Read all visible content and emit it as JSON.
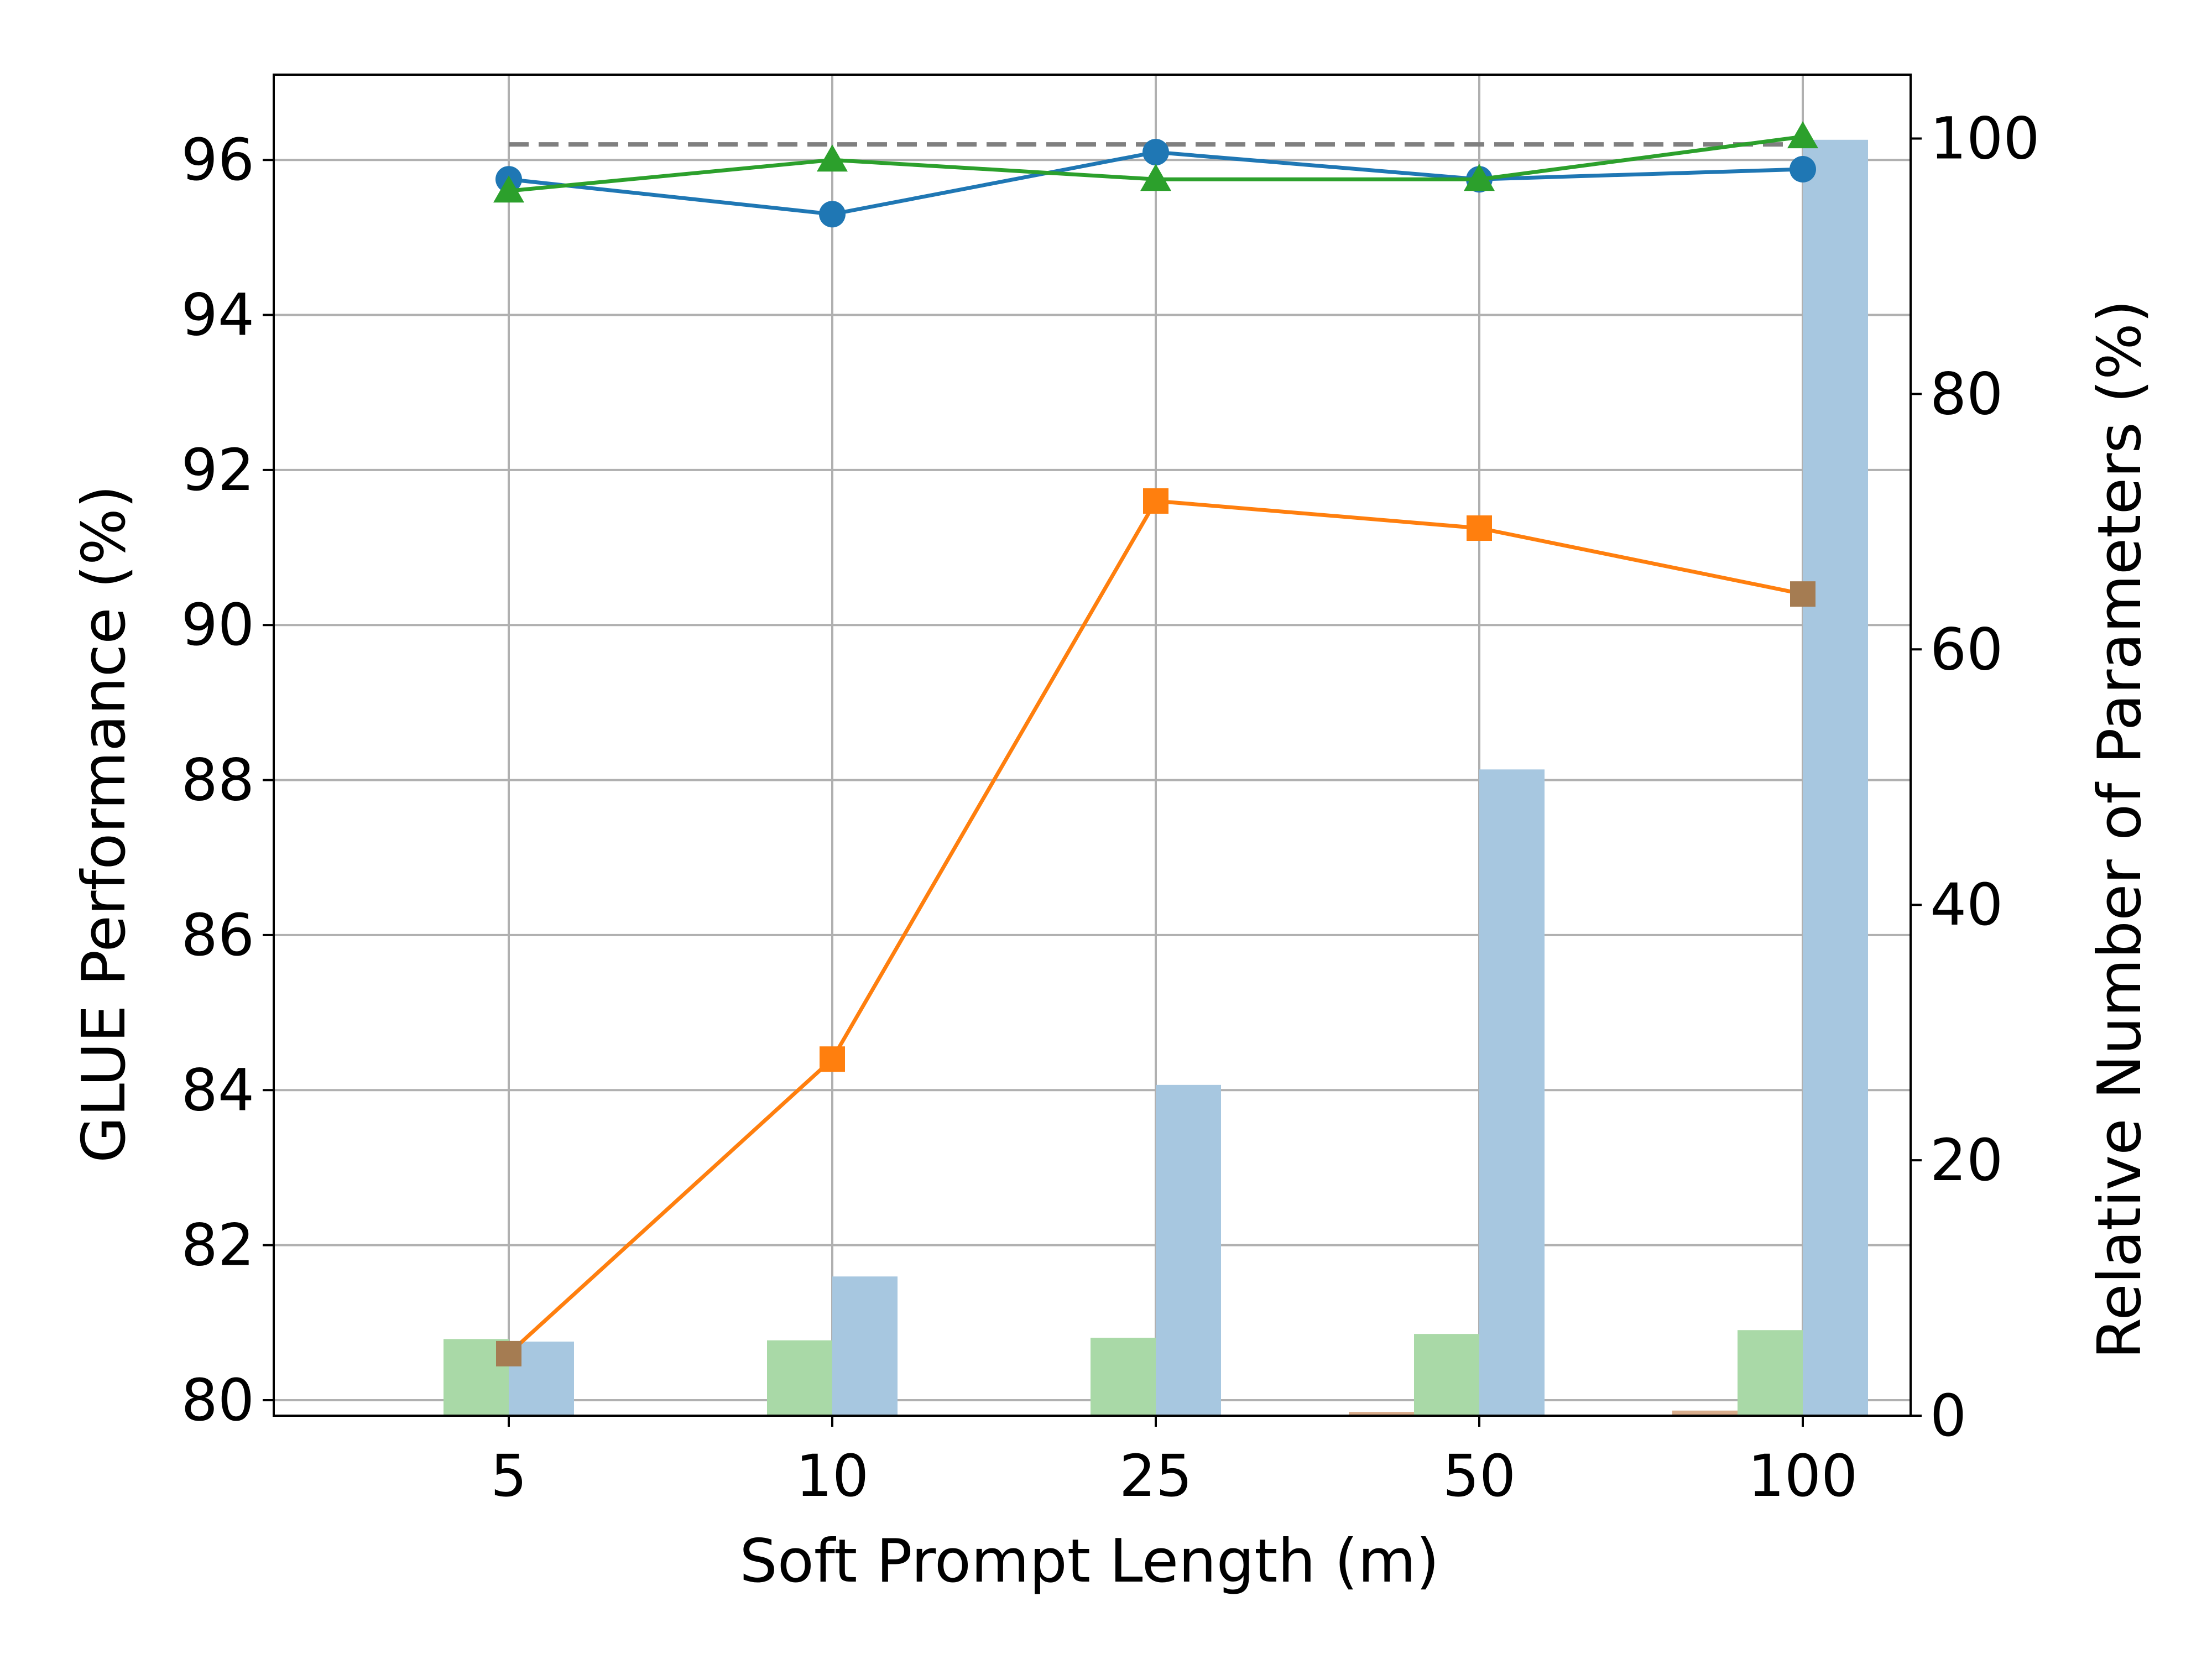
{
  "chart_data": {
    "type": "bar+line",
    "title": "",
    "categories": [
      "5",
      "10",
      "25",
      "50",
      "100"
    ],
    "xlabel": "Soft Prompt Length (m)",
    "ylabel_left": "GLUE Performance (%)",
    "ylabel_right": "Relative Number of Parameters (%)",
    "ylim_left": [
      79.8,
      97.1
    ],
    "ylim_right": [
      0,
      105
    ],
    "yticks_left": [
      80,
      82,
      84,
      86,
      88,
      90,
      92,
      94,
      96
    ],
    "yticks_right": [
      0,
      20,
      40,
      60,
      80,
      100
    ],
    "grid": true,
    "legend": "none",
    "reference_line": {
      "value": 96.2,
      "style": "dashed",
      "color": "#7f7f7f"
    },
    "line_series": [
      {
        "marker": "circle",
        "color": "#1f77b4",
        "values": [
          95.75,
          95.3,
          96.1,
          95.75,
          95.88
        ]
      },
      {
        "marker": "triangle",
        "color": "#2ca02c",
        "values": [
          95.6,
          96.0,
          95.75,
          95.75,
          96.3
        ]
      },
      {
        "marker": "square",
        "color": "#ff7f0e",
        "values": [
          80.6,
          84.4,
          91.6,
          91.25,
          90.4
        ],
        "marker_colors": [
          "#a57c52",
          "#ff7f0e",
          "#ff7f0e",
          "#ff7f0e",
          "#a57c52"
        ]
      }
    ],
    "bar_series": [
      {
        "color": "#d9ad8c",
        "values": [
          0.0,
          0.0,
          0.0,
          0.3,
          0.4
        ]
      },
      {
        "color": "#a9d9a7",
        "values": [
          6.0,
          5.9,
          6.1,
          6.4,
          6.7
        ]
      },
      {
        "color": "#a7c7e0",
        "values": [
          5.8,
          10.9,
          25.9,
          50.6,
          99.9
        ]
      }
    ]
  }
}
